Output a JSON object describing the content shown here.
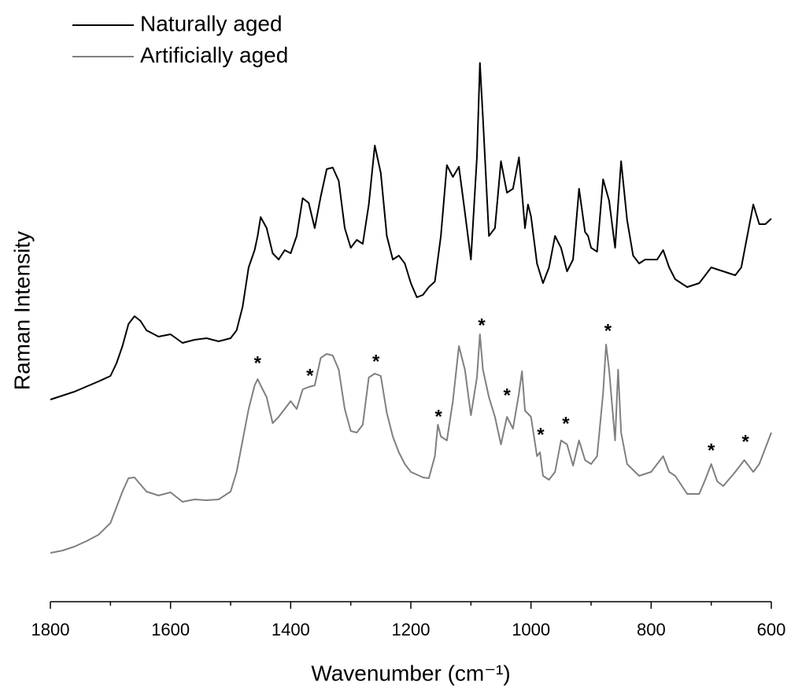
{
  "chart_data": {
    "type": "line",
    "xlabel": "Wavenumber (cm⁻¹)",
    "ylabel": "Raman Intensity",
    "xlim": [
      1800,
      600
    ],
    "xticks": [
      1800,
      1600,
      1400,
      1200,
      1000,
      800,
      600
    ],
    "xminorticks": [
      1700,
      1500,
      1300,
      1100,
      900,
      700
    ],
    "ylim": [
      0,
      700
    ],
    "legend": "upper left",
    "series": [
      {
        "name": "Naturally aged",
        "color": "#000000",
        "x": [
          1800,
          1760,
          1720,
          1700,
          1690,
          1680,
          1670,
          1660,
          1650,
          1640,
          1620,
          1600,
          1580,
          1560,
          1540,
          1520,
          1500,
          1490,
          1480,
          1470,
          1460,
          1455,
          1450,
          1440,
          1430,
          1420,
          1410,
          1400,
          1390,
          1380,
          1370,
          1360,
          1350,
          1340,
          1330,
          1320,
          1310,
          1300,
          1290,
          1280,
          1270,
          1260,
          1250,
          1240,
          1230,
          1220,
          1210,
          1200,
          1190,
          1180,
          1170,
          1160,
          1150,
          1140,
          1130,
          1120,
          1110,
          1100,
          1090,
          1085,
          1080,
          1070,
          1060,
          1050,
          1040,
          1030,
          1020,
          1010,
          1005,
          1000,
          990,
          980,
          970,
          960,
          950,
          940,
          930,
          920,
          910,
          905,
          900,
          890,
          880,
          870,
          860,
          850,
          840,
          830,
          820,
          810,
          790,
          780,
          770,
          760,
          740,
          720,
          700,
          680,
          660,
          650,
          640,
          630,
          620,
          610,
          600
        ],
        "values": [
          257,
          267,
          280,
          287,
          303,
          325,
          353,
          363,
          357,
          345,
          337,
          340,
          329,
          333,
          335,
          331,
          335,
          345,
          375,
          425,
          447,
          465,
          489,
          475,
          443,
          435,
          447,
          443,
          465,
          513,
          507,
          475,
          515,
          550,
          552,
          535,
          475,
          450,
          460,
          455,
          505,
          580,
          545,
          465,
          435,
          440,
          430,
          405,
          387,
          390,
          400,
          407,
          465,
          555,
          540,
          553,
          495,
          435,
          565,
          685,
          615,
          465,
          475,
          560,
          520,
          525,
          565,
          475,
          505,
          490,
          430,
          405,
          425,
          465,
          450,
          420,
          435,
          525,
          470,
          465,
          450,
          445,
          537,
          510,
          450,
          560,
          485,
          440,
          430,
          435,
          435,
          447,
          425,
          410,
          400,
          405,
          425,
          420,
          415,
          425,
          465,
          505,
          480,
          480,
          487
        ]
      },
      {
        "name": "Artificially aged",
        "color": "#808080",
        "x": [
          1800,
          1780,
          1760,
          1740,
          1720,
          1700,
          1680,
          1670,
          1660,
          1640,
          1620,
          1600,
          1580,
          1560,
          1540,
          1520,
          1500,
          1490,
          1480,
          1470,
          1460,
          1455,
          1450,
          1440,
          1430,
          1420,
          1410,
          1400,
          1390,
          1380,
          1370,
          1360,
          1350,
          1340,
          1330,
          1320,
          1310,
          1300,
          1290,
          1280,
          1270,
          1260,
          1250,
          1240,
          1230,
          1220,
          1210,
          1200,
          1180,
          1170,
          1160,
          1155,
          1150,
          1140,
          1130,
          1120,
          1110,
          1100,
          1090,
          1085,
          1080,
          1070,
          1060,
          1050,
          1040,
          1030,
          1020,
          1015,
          1010,
          1000,
          990,
          985,
          980,
          970,
          960,
          950,
          940,
          930,
          920,
          910,
          900,
          890,
          880,
          875,
          870,
          860,
          855,
          850,
          840,
          820,
          800,
          790,
          780,
          770,
          760,
          740,
          720,
          710,
          700,
          690,
          680,
          660,
          645,
          630,
          620,
          610,
          600
        ],
        "values": [
          62,
          65,
          70,
          77,
          85,
          100,
          140,
          157,
          158,
          140,
          135,
          139,
          127,
          130,
          129,
          130,
          140,
          165,
          205,
          245,
          275,
          283,
          275,
          260,
          227,
          235,
          245,
          255,
          245,
          270,
          273,
          275,
          310,
          315,
          313,
          295,
          245,
          217,
          215,
          225,
          285,
          290,
          287,
          240,
          210,
          190,
          175,
          165,
          158,
          157,
          185,
          225,
          210,
          205,
          255,
          325,
          295,
          237,
          285,
          340,
          295,
          260,
          235,
          200,
          235,
          220,
          265,
          293,
          243,
          235,
          185,
          190,
          160,
          155,
          165,
          205,
          200,
          173,
          205,
          180,
          175,
          185,
          265,
          327,
          295,
          205,
          295,
          215,
          175,
          160,
          165,
          175,
          185,
          165,
          160,
          137,
          137,
          155,
          175,
          153,
          147,
          165,
          180,
          165,
          175,
          195,
          215
        ]
      }
    ],
    "annotations": [
      {
        "text": "*",
        "x": 1455,
        "y": 308
      },
      {
        "text": "*",
        "x": 1368,
        "y": 292
      },
      {
        "text": "*",
        "x": 1258,
        "y": 310
      },
      {
        "text": "*",
        "x": 1154,
        "y": 240
      },
      {
        "text": "*",
        "x": 1082,
        "y": 356
      },
      {
        "text": "*",
        "x": 1040,
        "y": 267
      },
      {
        "text": "*",
        "x": 984,
        "y": 217
      },
      {
        "text": "*",
        "x": 942,
        "y": 231
      },
      {
        "text": "*",
        "x": 872,
        "y": 349
      },
      {
        "text": "*",
        "x": 700,
        "y": 197
      },
      {
        "text": "*",
        "x": 643,
        "y": 208
      }
    ]
  }
}
